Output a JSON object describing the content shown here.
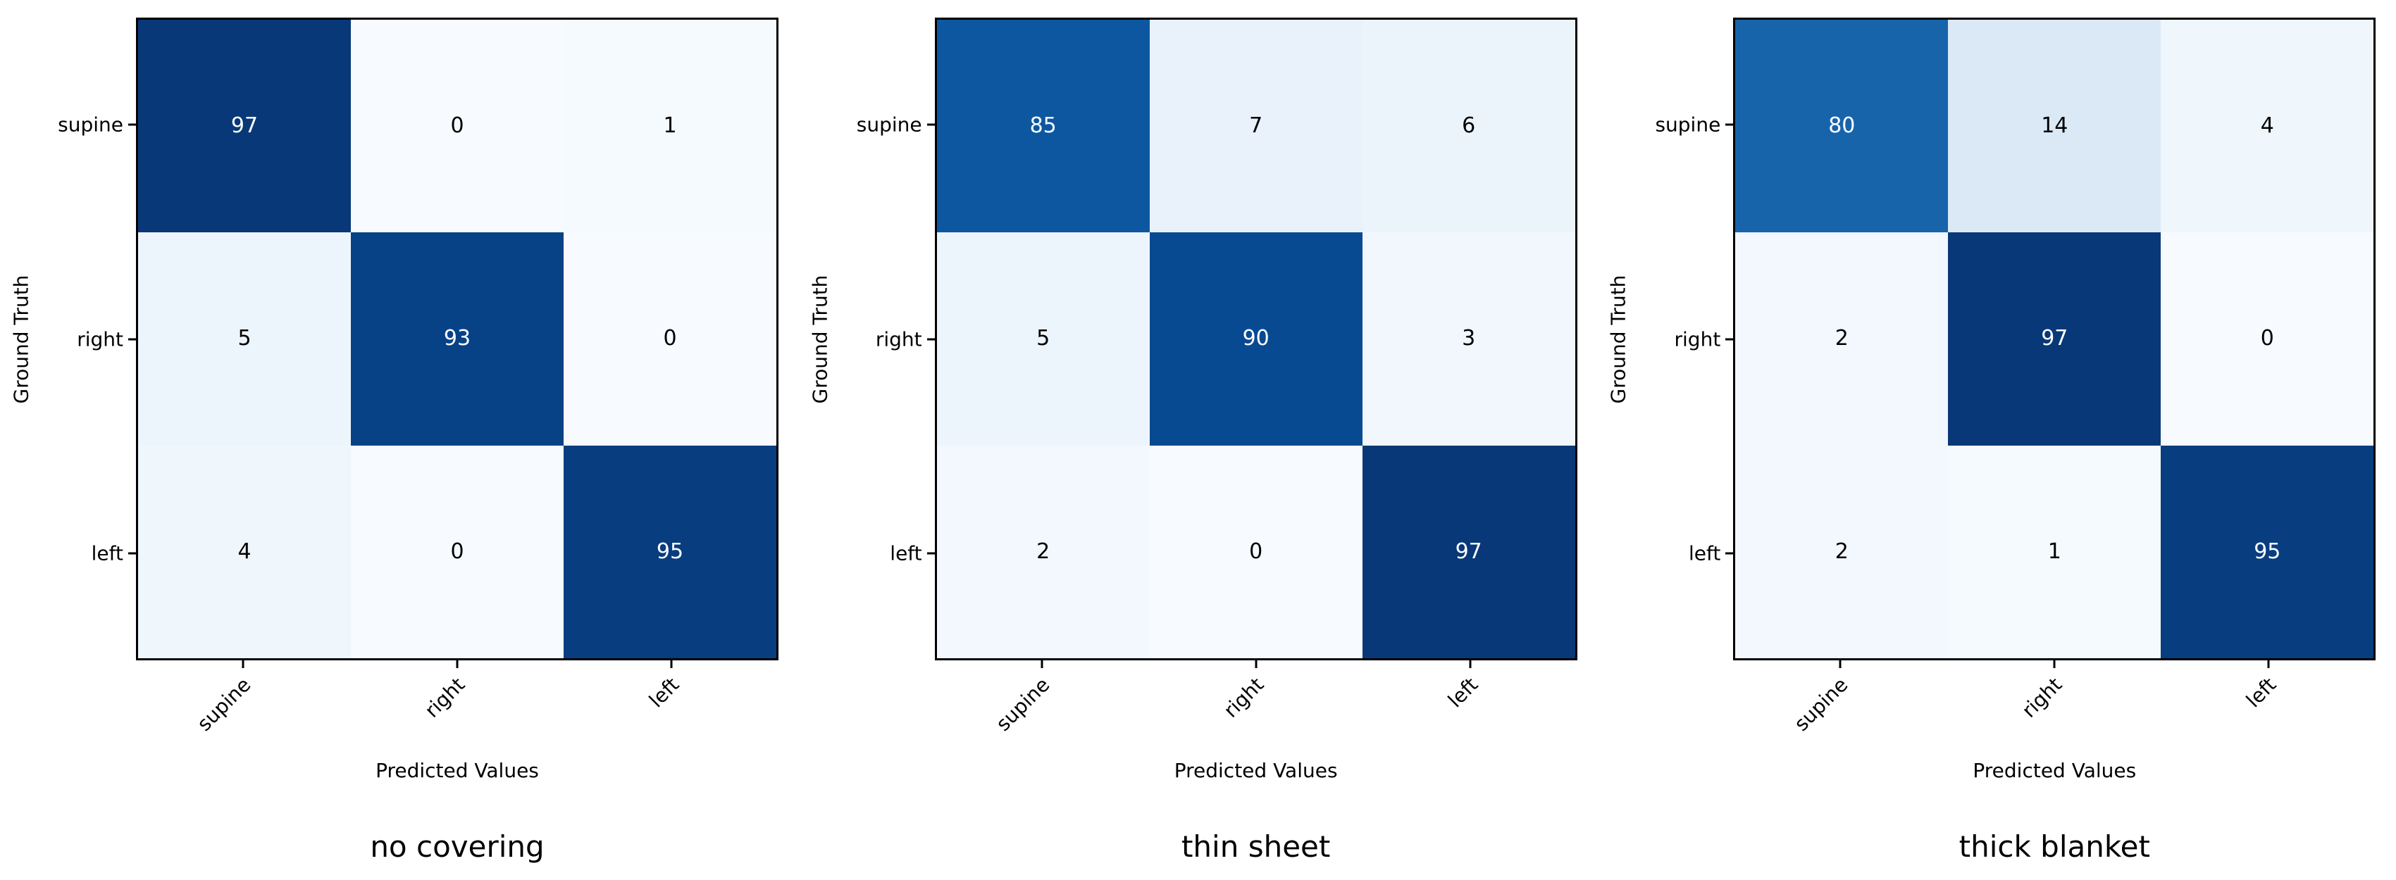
{
  "figure": {
    "ylabel": "Ground Truth",
    "xlabel": "Predicted Values",
    "classes": [
      "supine",
      "right",
      "left"
    ],
    "colormap": {
      "name": "Blues",
      "vmin": 0,
      "vmax": 100,
      "anchors": [
        "#f7fbff",
        "#deebf7",
        "#c6dbef",
        "#9ecae1",
        "#6baed6",
        "#4292c6",
        "#2171b5",
        "#08519c",
        "#08306b"
      ],
      "text_color_light_cell": "#000000",
      "text_color_dark_cell": "#ffffff"
    },
    "panels": [
      {
        "title": "no covering",
        "matrix": [
          [
            97,
            0,
            1
          ],
          [
            5,
            93,
            0
          ],
          [
            4,
            0,
            95
          ]
        ]
      },
      {
        "title": "thin sheet",
        "matrix": [
          [
            85,
            7,
            6
          ],
          [
            5,
            90,
            3
          ],
          [
            2,
            0,
            97
          ]
        ]
      },
      {
        "title": "thick blanket",
        "matrix": [
          [
            80,
            14,
            4
          ],
          [
            2,
            97,
            0
          ],
          [
            2,
            1,
            95
          ]
        ]
      }
    ]
  },
  "chart_data": [
    {
      "type": "heatmap",
      "title": "no covering",
      "xlabel": "Predicted Values",
      "ylabel": "Ground Truth",
      "x_categories": [
        "supine",
        "right",
        "left"
      ],
      "y_categories": [
        "supine",
        "right",
        "left"
      ],
      "values": [
        [
          97,
          0,
          1
        ],
        [
          5,
          93,
          0
        ],
        [
          4,
          0,
          95
        ]
      ],
      "colormap": "Blues",
      "vmin": 0,
      "vmax": 100,
      "grid": false,
      "legend": "none"
    },
    {
      "type": "heatmap",
      "title": "thin sheet",
      "xlabel": "Predicted Values",
      "ylabel": "Ground Truth",
      "x_categories": [
        "supine",
        "right",
        "left"
      ],
      "y_categories": [
        "supine",
        "right",
        "left"
      ],
      "values": [
        [
          85,
          7,
          6
        ],
        [
          5,
          90,
          3
        ],
        [
          2,
          0,
          97
        ]
      ],
      "colormap": "Blues",
      "vmin": 0,
      "vmax": 100,
      "grid": false,
      "legend": "none"
    },
    {
      "type": "heatmap",
      "title": "thick blanket",
      "xlabel": "Predicted Values",
      "ylabel": "Ground Truth",
      "x_categories": [
        "supine",
        "right",
        "left"
      ],
      "y_categories": [
        "supine",
        "right",
        "left"
      ],
      "values": [
        [
          80,
          14,
          4
        ],
        [
          2,
          97,
          0
        ],
        [
          2,
          1,
          95
        ]
      ],
      "colormap": "Blues",
      "vmin": 0,
      "vmax": 100,
      "grid": false,
      "legend": "none"
    }
  ]
}
